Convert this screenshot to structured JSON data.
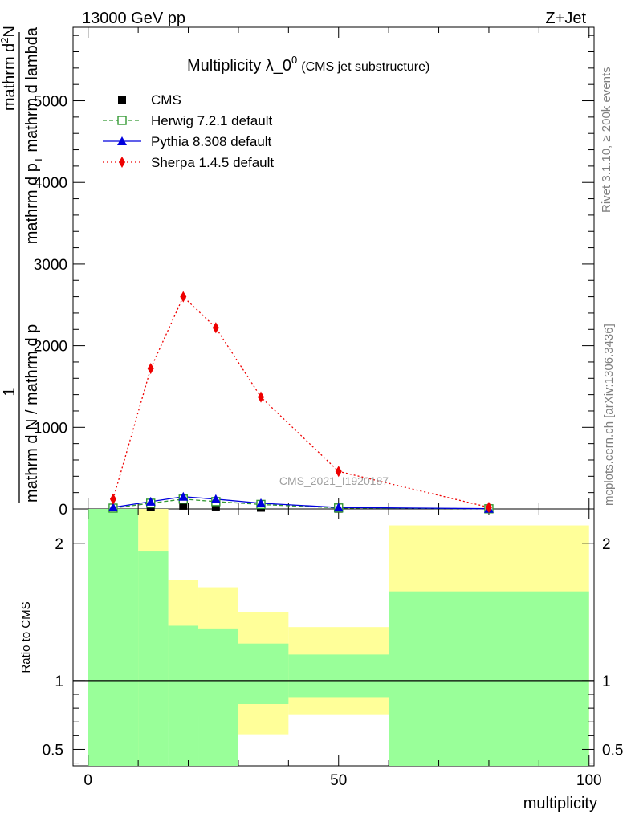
{
  "header": {
    "left": "13000 GeV pp",
    "right": "Z+Jet"
  },
  "side_labels": {
    "top": "Rivet 3.1.10, ≥ 200k events",
    "bottom": "mcplots.cern.ch [arXiv:1306.3436]"
  },
  "watermark": "CMS_2021_I1920187",
  "chart_data": {
    "type": "line",
    "title": {
      "main": "Multiplicity λ_0",
      "sup": "0",
      "sub": "(CMS jet substructure)"
    },
    "xlabel": "multiplicity",
    "ylabel_main": {
      "prefix": "1",
      "prefix_den": "mathrm d N / mathrm d p",
      "num": "mathrm d",
      "num_sup": "2",
      "num_rest": "N",
      "den": "mathrm d p",
      "den_sub": "T",
      "den_rest": " mathrm d lambda"
    },
    "ylabel_ratio": "Ratio to CMS",
    "xlim": [
      -3,
      101
    ],
    "ylim_main": [
      0,
      5900
    ],
    "ylim_ratio": [
      0.38,
      2.25
    ],
    "x_ticks": [
      0,
      50,
      100
    ],
    "y_ticks_main": [
      {
        "value": 0,
        "label": "0"
      },
      {
        "value": 1000,
        "label": "1000"
      },
      {
        "value": 2000,
        "label": "2000"
      },
      {
        "value": 3000,
        "label": "3000"
      },
      {
        "value": 4000,
        "label": "4000"
      },
      {
        "value": 5000,
        "label": "5000"
      }
    ],
    "y_ticks_ratio": [
      {
        "value": 0.5,
        "label": "0.5"
      },
      {
        "value": 1,
        "label": "1"
      },
      {
        "value": 2,
        "label": "2"
      }
    ],
    "series": [
      {
        "name": "CMS",
        "color": "#000000",
        "marker": "square",
        "line": "none",
        "x": [
          5,
          12.5,
          19,
          25.5,
          34.5,
          50,
          80
        ],
        "y": [
          5,
          25,
          40,
          30,
          15,
          3,
          1
        ]
      },
      {
        "name": "Herwig 7.2.1 default",
        "color": "#339933",
        "marker": "open-square",
        "line": "dashed",
        "x": [
          5,
          12.5,
          19,
          25.5,
          34.5,
          50,
          80
        ],
        "y": [
          10,
          70,
          120,
          90,
          55,
          12,
          2
        ]
      },
      {
        "name": "Pythia 8.308 default",
        "color": "#0000dd",
        "marker": "triangle",
        "line": "solid",
        "x": [
          5,
          12.5,
          19,
          25.5,
          34.5,
          50,
          80
        ],
        "y": [
          20,
          90,
          150,
          120,
          70,
          18,
          3
        ]
      },
      {
        "name": "Sherpa 1.4.5 default",
        "color": "#ee0000",
        "marker": "diamond",
        "line": "dotted",
        "x": [
          5,
          12.5,
          19,
          25.5,
          34.5,
          50,
          80
        ],
        "y": [
          120,
          1720,
          2600,
          2220,
          1370,
          460,
          20
        ]
      }
    ],
    "ratio_bands": [
      {
        "x0": 0,
        "x1": 10,
        "yellow": [
          0.3,
          2.4
        ],
        "green": [
          0.3,
          2.4
        ]
      },
      {
        "x0": 10,
        "x1": 16,
        "yellow": [
          0.3,
          2.4
        ],
        "green": [
          0.3,
          1.94
        ]
      },
      {
        "x0": 16,
        "x1": 22,
        "yellow": [
          0.7,
          1.73
        ],
        "green": [
          0.3,
          1.4
        ]
      },
      {
        "x0": 22,
        "x1": 30,
        "yellow": [
          0.74,
          1.68
        ],
        "green": [
          0.3,
          1.38
        ]
      },
      {
        "x0": 30,
        "x1": 40,
        "yellow": [
          0.61,
          1.5
        ],
        "green": [
          0.83,
          1.27
        ]
      },
      {
        "x0": 40,
        "x1": 60,
        "yellow": [
          0.75,
          1.39
        ],
        "green": [
          0.88,
          1.19
        ]
      },
      {
        "x0": 60,
        "x1": 100,
        "yellow": [
          0.3,
          2.13
        ],
        "green": [
          0.37,
          1.65
        ]
      }
    ]
  }
}
